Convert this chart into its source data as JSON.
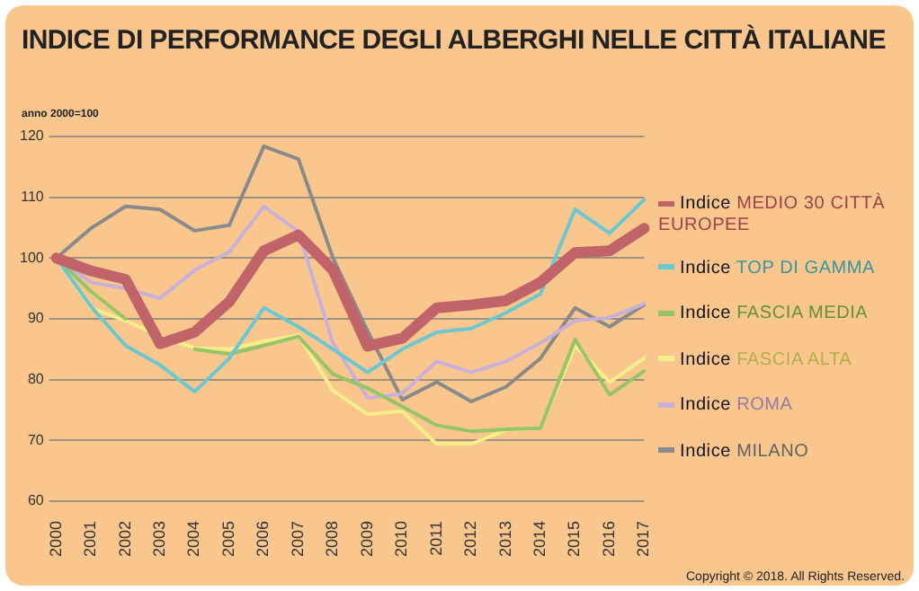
{
  "chart_data": {
    "type": "line",
    "title": "INDICE DI PERFORMANCE DEGLI ALBERGHI NELLE CITTÀ ITALIANE",
    "ylabel": "anno 2000=100",
    "categories": [
      "2000",
      "2001",
      "2002",
      "2003",
      "2004",
      "2005",
      "2006",
      "2007",
      "2008",
      "2009",
      "2010",
      "2011",
      "2012",
      "2013",
      "2014",
      "2015",
      "2016",
      "2017"
    ],
    "series": [
      {
        "name": "Indice MEDIO 30 CITTÀ EUROPEE",
        "color": "#c0646a",
        "values": [
          100,
          97.9,
          96.5,
          85.9,
          87.8,
          92.8,
          101.2,
          103.8,
          98,
          85.5,
          86.8,
          91.8,
          92.3,
          93,
          96,
          100.9,
          101.2,
          104.9
        ]
      },
      {
        "name": "Indice TOP DI GAMMA",
        "color": "#6cc8d0",
        "values": [
          100,
          92,
          85.6,
          82.4,
          78,
          83.5,
          91.8,
          88.7,
          85,
          81.2,
          85,
          87.8,
          88.4,
          91,
          94.1,
          108,
          104.1,
          109.6
        ]
      },
      {
        "name": "Indice FASCIA MEDIA",
        "color": "#98c468",
        "values": [
          100,
          94.5,
          90,
          null,
          85,
          84.2,
          85.6,
          87.1,
          80.9,
          78.6,
          75.6,
          72.5,
          71.5,
          71.8,
          72,
          86.6,
          77.5,
          81.4
        ]
      },
      {
        "name": "Indice FASCIA ALTA",
        "color": "#f5ef8a",
        "values": [
          100,
          91.8,
          89.7,
          87.1,
          85.2,
          85,
          86.3,
          87.3,
          78.2,
          74.3,
          74.8,
          69.4,
          69.4,
          71.7,
          72,
          85.6,
          79.6,
          83.5
        ]
      },
      {
        "name": "Indice ROMA",
        "color": "#c8b0d8",
        "values": [
          100,
          96,
          95,
          93.4,
          98,
          101,
          108.5,
          104.4,
          86,
          77,
          77.7,
          83,
          81.2,
          83,
          86,
          89.7,
          90.2,
          92.5
        ]
      },
      {
        "name": "Indice MILANO",
        "color": "#8a8a8a",
        "values": [
          100,
          104.9,
          108.5,
          108,
          104.5,
          105.4,
          118.4,
          116.3,
          100,
          88,
          76.7,
          79.6,
          76.4,
          78.8,
          83.5,
          91.8,
          88.7,
          92.3
        ]
      }
    ],
    "ylim": [
      60,
      120
    ],
    "yticks": [
      60,
      70,
      80,
      90,
      100,
      110,
      120
    ],
    "grid": "y",
    "legend": "right",
    "marker": "none",
    "line_style": "solid",
    "annotations": [
      "Copyright © 2018. All Rights Reserved."
    ]
  }
}
